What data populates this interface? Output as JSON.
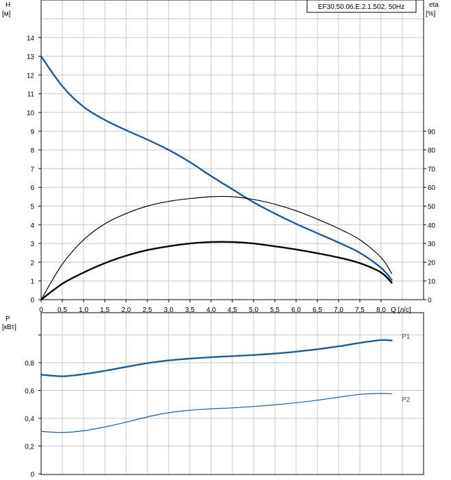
{
  "colors": {
    "grid": "#c8c8c8",
    "axis": "#000000",
    "head_curve": "#1f5a96",
    "power_curve": "#1f5a96",
    "eta_curve": "#000000"
  },
  "chart_data": [
    {
      "type": "line",
      "title": "EF30.50.06.E.2.1.502, 50Hz",
      "xlabel": "Q [л/с]",
      "ylabel_left": "H [м]",
      "ylabel_left_name": "H",
      "ylabel_left_unit": "[м]",
      "ylabel_right": "eta [%]",
      "ylabel_right_name": "eta",
      "ylabel_right_unit": "[%]",
      "xlim": [
        0,
        9
      ],
      "ylim_left": [
        0,
        15
      ],
      "ylim_right": [
        0,
        150
      ],
      "x_ticks": [
        "0",
        "0,5",
        "1,0",
        "1,5",
        "2,0",
        "2,5",
        "3,0",
        "3,5",
        "4,0",
        "4,5",
        "5,0",
        "5,5",
        "6,0",
        "6,5",
        "7,0",
        "7,5",
        "8,0"
      ],
      "y_left_ticks": [
        "0",
        "1",
        "2",
        "3",
        "4",
        "5",
        "6",
        "7",
        "8",
        "9",
        "10",
        "11",
        "12",
        "13",
        "14"
      ],
      "y_right_ticks": [
        "0",
        "10",
        "20",
        "30",
        "40",
        "50",
        "60",
        "70",
        "80",
        "90"
      ],
      "grid": true,
      "series": [
        {
          "axis": "left",
          "color": "#1f5a96",
          "width": 2.4,
          "points": [
            [
              0,
              13
            ],
            [
              0.5,
              11.4
            ],
            [
              1,
              10.3
            ],
            [
              1.5,
              9.6
            ],
            [
              2,
              9.05
            ],
            [
              2.5,
              8.55
            ],
            [
              3,
              8.0
            ],
            [
              3.5,
              7.35
            ],
            [
              4,
              6.6
            ],
            [
              4.5,
              5.9
            ],
            [
              5,
              5.2
            ],
            [
              5.5,
              4.6
            ],
            [
              6,
              4.05
            ],
            [
              6.5,
              3.55
            ],
            [
              7,
              3.05
            ],
            [
              7.5,
              2.5
            ],
            [
              8,
              1.7
            ],
            [
              8.25,
              1.05
            ]
          ]
        },
        {
          "axis": "right",
          "color": "#000000",
          "width": 1.2,
          "points": [
            [
              0,
              0
            ],
            [
              0.5,
              19
            ],
            [
              1,
              32
            ],
            [
              1.5,
              40.5
            ],
            [
              2,
              46
            ],
            [
              2.5,
              50
            ],
            [
              3,
              52.5
            ],
            [
              3.5,
              54
            ],
            [
              4,
              55
            ],
            [
              4.5,
              55
            ],
            [
              5,
              53.5
            ],
            [
              5.5,
              51
            ],
            [
              6,
              47.5
            ],
            [
              6.5,
              43
            ],
            [
              7,
              38
            ],
            [
              7.5,
              32
            ],
            [
              8,
              22.5
            ],
            [
              8.25,
              14
            ]
          ]
        },
        {
          "axis": "right",
          "color": "#000000",
          "width": 2.4,
          "points": [
            [
              0,
              0
            ],
            [
              0.5,
              8.5
            ],
            [
              1,
              14.5
            ],
            [
              1.5,
              19.5
            ],
            [
              2,
              23.5
            ],
            [
              2.5,
              26.5
            ],
            [
              3,
              28.5
            ],
            [
              3.5,
              30
            ],
            [
              4,
              30.8
            ],
            [
              4.5,
              30.8
            ],
            [
              5,
              30
            ],
            [
              5.5,
              28.5
            ],
            [
              6,
              26.8
            ],
            [
              6.5,
              24.8
            ],
            [
              7,
              22.5
            ],
            [
              7.5,
              19.5
            ],
            [
              8,
              14.5
            ],
            [
              8.25,
              9
            ]
          ]
        }
      ]
    },
    {
      "type": "line",
      "xlabel": "",
      "ylabel": "P [кВт]",
      "ylabel_name": "P",
      "ylabel_unit": "[кВт]",
      "xlim": [
        0,
        9
      ],
      "ylim": [
        0,
        1.02
      ],
      "y_ticks": [
        "0",
        "0,2",
        "0,4",
        "0,6",
        "0,8"
      ],
      "grid": true,
      "series": [
        {
          "name": "P1",
          "color": "#1f5a96",
          "width": 2.4,
          "points": [
            [
              0,
              0.714
            ],
            [
              0.5,
              0.703
            ],
            [
              1,
              0.718
            ],
            [
              1.5,
              0.742
            ],
            [
              2,
              0.77
            ],
            [
              2.5,
              0.797
            ],
            [
              3,
              0.817
            ],
            [
              3.5,
              0.83
            ],
            [
              4,
              0.84
            ],
            [
              4.5,
              0.848
            ],
            [
              5,
              0.856
            ],
            [
              5.5,
              0.866
            ],
            [
              6,
              0.88
            ],
            [
              6.5,
              0.897
            ],
            [
              7,
              0.918
            ],
            [
              7.5,
              0.943
            ],
            [
              8,
              0.963
            ],
            [
              8.25,
              0.96
            ]
          ]
        },
        {
          "name": "P2",
          "color": "#1f5a96",
          "width": 1.2,
          "points": [
            [
              0,
              0.305
            ],
            [
              0.5,
              0.298
            ],
            [
              1,
              0.31
            ],
            [
              1.5,
              0.338
            ],
            [
              2,
              0.372
            ],
            [
              2.5,
              0.41
            ],
            [
              3,
              0.44
            ],
            [
              3.5,
              0.458
            ],
            [
              4,
              0.468
            ],
            [
              4.5,
              0.475
            ],
            [
              5,
              0.485
            ],
            [
              5.5,
              0.497
            ],
            [
              6,
              0.512
            ],
            [
              6.5,
              0.53
            ],
            [
              7,
              0.552
            ],
            [
              7.5,
              0.572
            ],
            [
              8,
              0.579
            ],
            [
              8.25,
              0.576
            ]
          ]
        }
      ]
    }
  ]
}
